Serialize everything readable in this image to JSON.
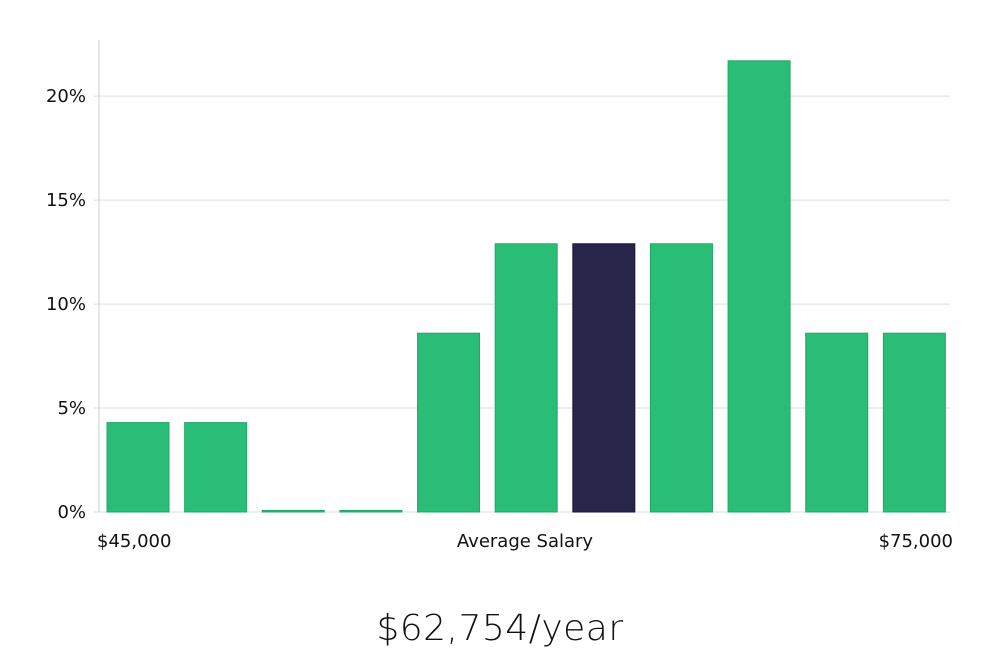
{
  "chart_data": {
    "type": "bar",
    "values": [
      4.3,
      4.3,
      0,
      0,
      8.6,
      12.9,
      12.9,
      12.9,
      21.7,
      8.6,
      8.6
    ],
    "highlight_index": 6,
    "ylim": [
      0,
      22.7
    ],
    "yticks": [
      0,
      5,
      10,
      15,
      20
    ],
    "ytick_labels": [
      "0%",
      "5%",
      "10%",
      "15%",
      "20%"
    ],
    "x_min_label": "$45,000",
    "x_center_label": "Average Salary",
    "x_max_label": "$75,000",
    "grid": true,
    "colors": {
      "bar": "#2abd77",
      "highlight": "#28254a",
      "grid": "#dddddd",
      "axis": "#cccccc"
    }
  },
  "headline": "$62,754/year"
}
